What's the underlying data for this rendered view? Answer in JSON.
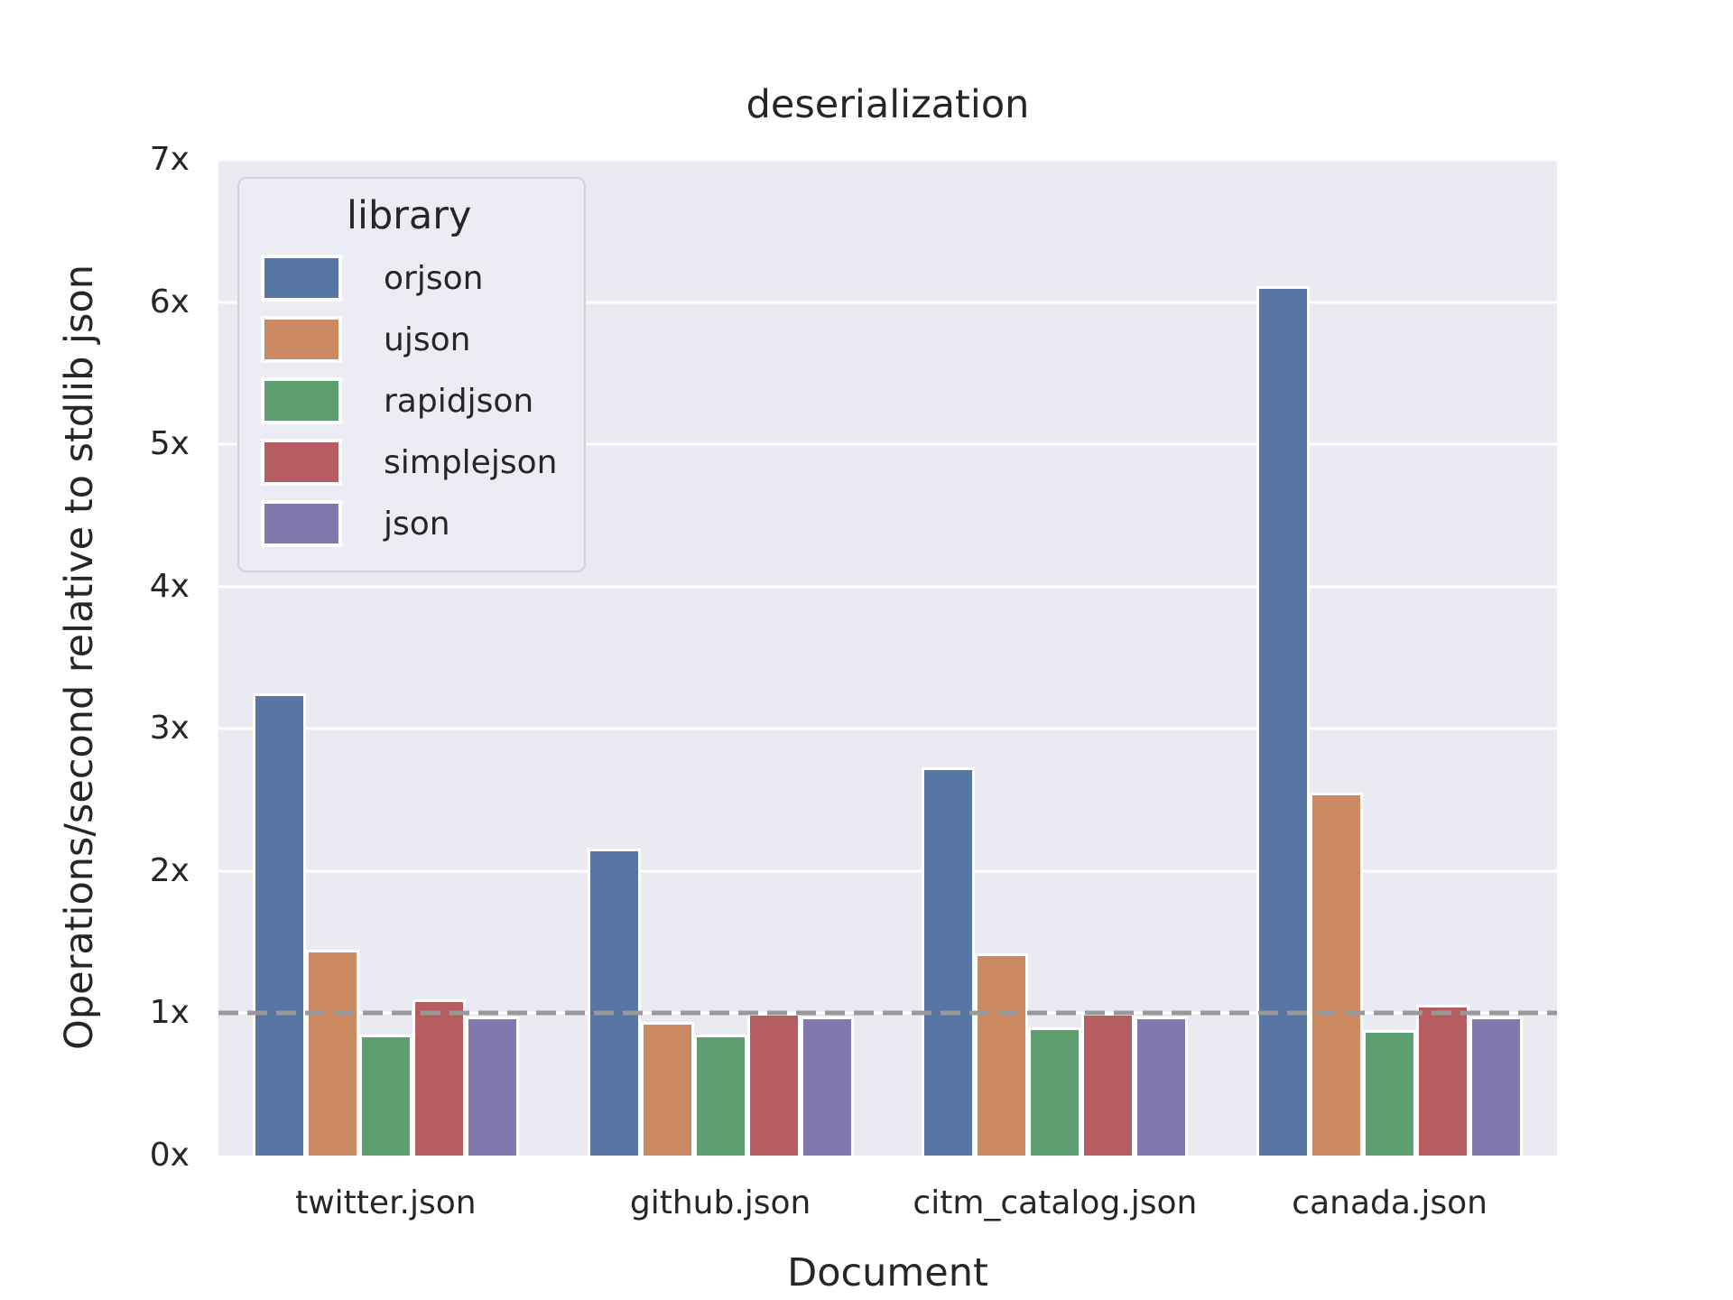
{
  "chart_data": {
    "type": "bar",
    "title": "deserialization",
    "xlabel": "Document",
    "ylabel": "Operations/second relative to stdlib json",
    "categories": [
      "twitter.json",
      "github.json",
      "citm_catalog.json",
      "canada.json"
    ],
    "series": [
      {
        "name": "orjson",
        "color": "#5876A4",
        "values": [
          3.25,
          2.16,
          2.73,
          6.11
        ]
      },
      {
        "name": "ujson",
        "color": "#CC8A63",
        "values": [
          1.45,
          0.94,
          1.42,
          2.55
        ]
      },
      {
        "name": "rapidjson",
        "color": "#5E9F72",
        "values": [
          0.85,
          0.85,
          0.9,
          0.88
        ]
      },
      {
        "name": "simplejson",
        "color": "#B55D61",
        "values": [
          1.1,
          1.0,
          1.0,
          1.06
        ]
      },
      {
        "name": "json",
        "color": "#8378AD",
        "values": [
          0.98,
          0.98,
          0.98,
          0.98
        ]
      }
    ],
    "ylim": [
      0,
      7
    ],
    "y_ticks": [
      "0x",
      "1x",
      "2x",
      "3x",
      "4x",
      "5x",
      "6x",
      "7x"
    ],
    "grid": true,
    "legend": {
      "title": "library",
      "position": "upper left"
    },
    "reference_line": {
      "value": 1,
      "style": "dashed",
      "color": "#999999"
    },
    "style": {
      "plot_background": "#EAEAF2",
      "figure_background": "#ffffff",
      "grid_color": "#ffffff",
      "text_color": "#262626"
    }
  }
}
